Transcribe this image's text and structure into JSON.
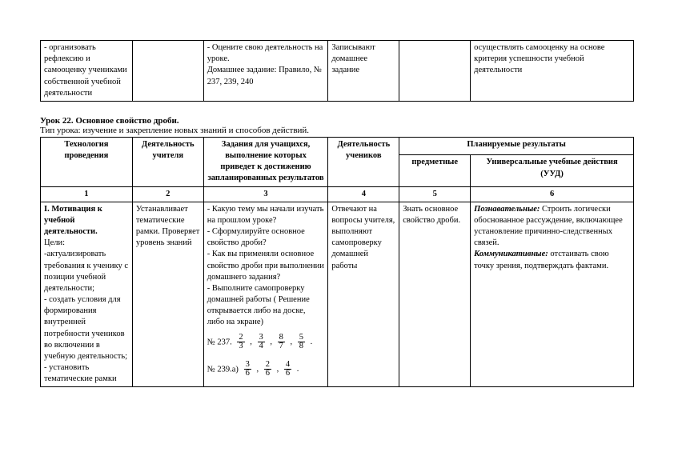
{
  "top_table": {
    "col_widths_pct": [
      15.5,
      12,
      21,
      12,
      12,
      27.5
    ],
    "row": [
      "- организовать рефлексию и самооценку учениками собственной учебной деятельности",
      "",
      "- Оцените свою деятельность на уроке.\nДомашнее задание: Правило, № 237, 239, 240",
      "Записывают домашнее задание",
      "",
      "осуществлять самооценку на основе критерия успешности учебной деятельности"
    ]
  },
  "lesson": {
    "title_bold": "Урок 22. Основное свойство дроби.",
    "type": "Тип урока: изучение и закрепление новых знаний и способов действий."
  },
  "main_table": {
    "col_widths_pct": [
      15.5,
      12,
      21,
      12,
      12,
      27.5
    ],
    "header": {
      "tech": "Технология проведения",
      "teacher": "Деятельность учителя",
      "tasks": "Задания для учащихся, выполнение которых приведет к достижению запланированных результатов",
      "students": "Деятельность учеников",
      "results_group": "Планируемые результаты",
      "subject": "предметные",
      "uud": "Универсальные учебные действия\n(УУД)"
    },
    "nums": [
      "1",
      "2",
      "3",
      "4",
      "5",
      "6"
    ],
    "row1": {
      "tech": {
        "bold": "I. Мотивация к учебной деятельности.",
        "rest": "Цели:\n-актуализировать требования к ученику с позиции учебной деятельности;\n- создать условия для формирования внутренней потребности учеников во включении в учебную деятельность;\n- установить тематические рамки"
      },
      "teacher": "Устанавливает тематические рамки. Проверяет уровень знаний",
      "tasks": {
        "text": "- Какую тему мы начали изучать на прошлом уроке?\n- Сформулируйте основное свойство дроби?\n- Как вы применяли основное свойство дроби при выполнении домашнего задания?\n- Выполните самопроверку домашней работы ( Решение открывается либо на доске, либо на экране)",
        "line237_label": "№ 237.",
        "line239_label": "№ 239.а)",
        "fracs237": [
          {
            "n": "2",
            "d": "3"
          },
          {
            "n": "3",
            "d": "4"
          },
          {
            "n": "8",
            "d": "7"
          },
          {
            "n": "5",
            "d": "8"
          }
        ],
        "fracs239": [
          {
            "n": "3",
            "d": "6"
          },
          {
            "n": "2",
            "d": "6"
          },
          {
            "n": "4",
            "d": "6"
          }
        ]
      },
      "students": "Отвечают на вопросы учителя, выполняют самопроверку домашней работы",
      "subject": "Знать основное свойство дроби.",
      "uud": {
        "p_label": "Познавательные:",
        "p_text": "Строить логически обоснованное рассуждение, включающее установление причинно-следственных связей.",
        "k_label": "Коммуникативные:",
        "k_text": "отстаивать свою точку зрения, подтверждать фактами."
      }
    }
  }
}
